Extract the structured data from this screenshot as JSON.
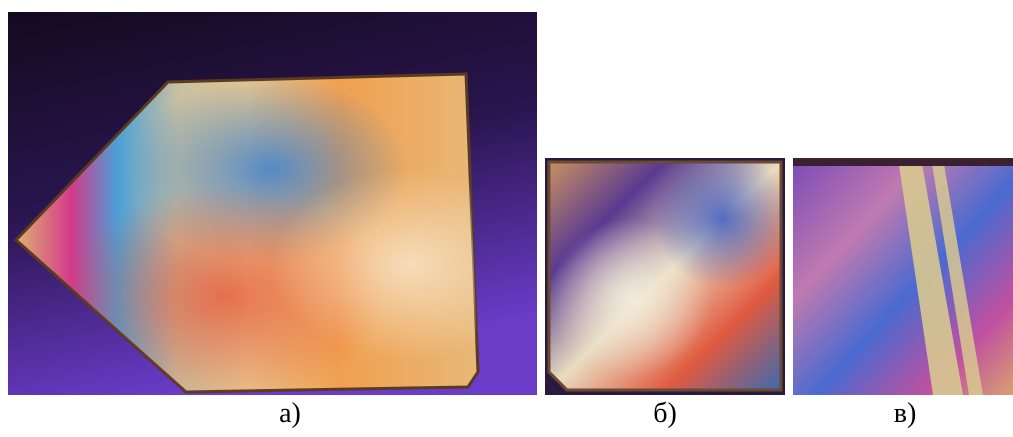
{
  "panels": [
    {
      "label": "а)"
    },
    {
      "label": "б)"
    },
    {
      "label": "в)"
    }
  ]
}
